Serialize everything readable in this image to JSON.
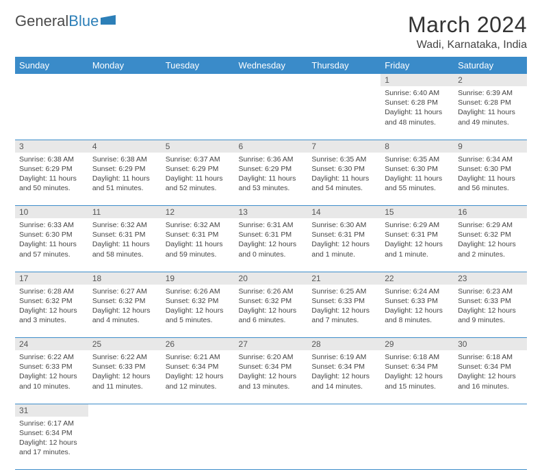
{
  "logo": {
    "brand1": "General",
    "brand2": "Blue"
  },
  "title": "March 2024",
  "location": "Wadi, Karnataka, India",
  "weekdays": [
    "Sunday",
    "Monday",
    "Tuesday",
    "Wednesday",
    "Thursday",
    "Friday",
    "Saturday"
  ],
  "colors": {
    "header_bg": "#3a8bc9",
    "header_fg": "#ffffff",
    "daynum_bg": "#e8e8e8",
    "row_border": "#3a8bc9",
    "text": "#444444"
  },
  "weeks": [
    [
      null,
      null,
      null,
      null,
      null,
      {
        "n": "1",
        "sr": "Sunrise: 6:40 AM",
        "ss": "Sunset: 6:28 PM",
        "d1": "Daylight: 11 hours",
        "d2": "and 48 minutes."
      },
      {
        "n": "2",
        "sr": "Sunrise: 6:39 AM",
        "ss": "Sunset: 6:28 PM",
        "d1": "Daylight: 11 hours",
        "d2": "and 49 minutes."
      }
    ],
    [
      {
        "n": "3",
        "sr": "Sunrise: 6:38 AM",
        "ss": "Sunset: 6:29 PM",
        "d1": "Daylight: 11 hours",
        "d2": "and 50 minutes."
      },
      {
        "n": "4",
        "sr": "Sunrise: 6:38 AM",
        "ss": "Sunset: 6:29 PM",
        "d1": "Daylight: 11 hours",
        "d2": "and 51 minutes."
      },
      {
        "n": "5",
        "sr": "Sunrise: 6:37 AM",
        "ss": "Sunset: 6:29 PM",
        "d1": "Daylight: 11 hours",
        "d2": "and 52 minutes."
      },
      {
        "n": "6",
        "sr": "Sunrise: 6:36 AM",
        "ss": "Sunset: 6:29 PM",
        "d1": "Daylight: 11 hours",
        "d2": "and 53 minutes."
      },
      {
        "n": "7",
        "sr": "Sunrise: 6:35 AM",
        "ss": "Sunset: 6:30 PM",
        "d1": "Daylight: 11 hours",
        "d2": "and 54 minutes."
      },
      {
        "n": "8",
        "sr": "Sunrise: 6:35 AM",
        "ss": "Sunset: 6:30 PM",
        "d1": "Daylight: 11 hours",
        "d2": "and 55 minutes."
      },
      {
        "n": "9",
        "sr": "Sunrise: 6:34 AM",
        "ss": "Sunset: 6:30 PM",
        "d1": "Daylight: 11 hours",
        "d2": "and 56 minutes."
      }
    ],
    [
      {
        "n": "10",
        "sr": "Sunrise: 6:33 AM",
        "ss": "Sunset: 6:30 PM",
        "d1": "Daylight: 11 hours",
        "d2": "and 57 minutes."
      },
      {
        "n": "11",
        "sr": "Sunrise: 6:32 AM",
        "ss": "Sunset: 6:31 PM",
        "d1": "Daylight: 11 hours",
        "d2": "and 58 minutes."
      },
      {
        "n": "12",
        "sr": "Sunrise: 6:32 AM",
        "ss": "Sunset: 6:31 PM",
        "d1": "Daylight: 11 hours",
        "d2": "and 59 minutes."
      },
      {
        "n": "13",
        "sr": "Sunrise: 6:31 AM",
        "ss": "Sunset: 6:31 PM",
        "d1": "Daylight: 12 hours",
        "d2": "and 0 minutes."
      },
      {
        "n": "14",
        "sr": "Sunrise: 6:30 AM",
        "ss": "Sunset: 6:31 PM",
        "d1": "Daylight: 12 hours",
        "d2": "and 1 minute."
      },
      {
        "n": "15",
        "sr": "Sunrise: 6:29 AM",
        "ss": "Sunset: 6:31 PM",
        "d1": "Daylight: 12 hours",
        "d2": "and 1 minute."
      },
      {
        "n": "16",
        "sr": "Sunrise: 6:29 AM",
        "ss": "Sunset: 6:32 PM",
        "d1": "Daylight: 12 hours",
        "d2": "and 2 minutes."
      }
    ],
    [
      {
        "n": "17",
        "sr": "Sunrise: 6:28 AM",
        "ss": "Sunset: 6:32 PM",
        "d1": "Daylight: 12 hours",
        "d2": "and 3 minutes."
      },
      {
        "n": "18",
        "sr": "Sunrise: 6:27 AM",
        "ss": "Sunset: 6:32 PM",
        "d1": "Daylight: 12 hours",
        "d2": "and 4 minutes."
      },
      {
        "n": "19",
        "sr": "Sunrise: 6:26 AM",
        "ss": "Sunset: 6:32 PM",
        "d1": "Daylight: 12 hours",
        "d2": "and 5 minutes."
      },
      {
        "n": "20",
        "sr": "Sunrise: 6:26 AM",
        "ss": "Sunset: 6:32 PM",
        "d1": "Daylight: 12 hours",
        "d2": "and 6 minutes."
      },
      {
        "n": "21",
        "sr": "Sunrise: 6:25 AM",
        "ss": "Sunset: 6:33 PM",
        "d1": "Daylight: 12 hours",
        "d2": "and 7 minutes."
      },
      {
        "n": "22",
        "sr": "Sunrise: 6:24 AM",
        "ss": "Sunset: 6:33 PM",
        "d1": "Daylight: 12 hours",
        "d2": "and 8 minutes."
      },
      {
        "n": "23",
        "sr": "Sunrise: 6:23 AM",
        "ss": "Sunset: 6:33 PM",
        "d1": "Daylight: 12 hours",
        "d2": "and 9 minutes."
      }
    ],
    [
      {
        "n": "24",
        "sr": "Sunrise: 6:22 AM",
        "ss": "Sunset: 6:33 PM",
        "d1": "Daylight: 12 hours",
        "d2": "and 10 minutes."
      },
      {
        "n": "25",
        "sr": "Sunrise: 6:22 AM",
        "ss": "Sunset: 6:33 PM",
        "d1": "Daylight: 12 hours",
        "d2": "and 11 minutes."
      },
      {
        "n": "26",
        "sr": "Sunrise: 6:21 AM",
        "ss": "Sunset: 6:34 PM",
        "d1": "Daylight: 12 hours",
        "d2": "and 12 minutes."
      },
      {
        "n": "27",
        "sr": "Sunrise: 6:20 AM",
        "ss": "Sunset: 6:34 PM",
        "d1": "Daylight: 12 hours",
        "d2": "and 13 minutes."
      },
      {
        "n": "28",
        "sr": "Sunrise: 6:19 AM",
        "ss": "Sunset: 6:34 PM",
        "d1": "Daylight: 12 hours",
        "d2": "and 14 minutes."
      },
      {
        "n": "29",
        "sr": "Sunrise: 6:18 AM",
        "ss": "Sunset: 6:34 PM",
        "d1": "Daylight: 12 hours",
        "d2": "and 15 minutes."
      },
      {
        "n": "30",
        "sr": "Sunrise: 6:18 AM",
        "ss": "Sunset: 6:34 PM",
        "d1": "Daylight: 12 hours",
        "d2": "and 16 minutes."
      }
    ],
    [
      {
        "n": "31",
        "sr": "Sunrise: 6:17 AM",
        "ss": "Sunset: 6:34 PM",
        "d1": "Daylight: 12 hours",
        "d2": "and 17 minutes."
      },
      null,
      null,
      null,
      null,
      null,
      null
    ]
  ]
}
